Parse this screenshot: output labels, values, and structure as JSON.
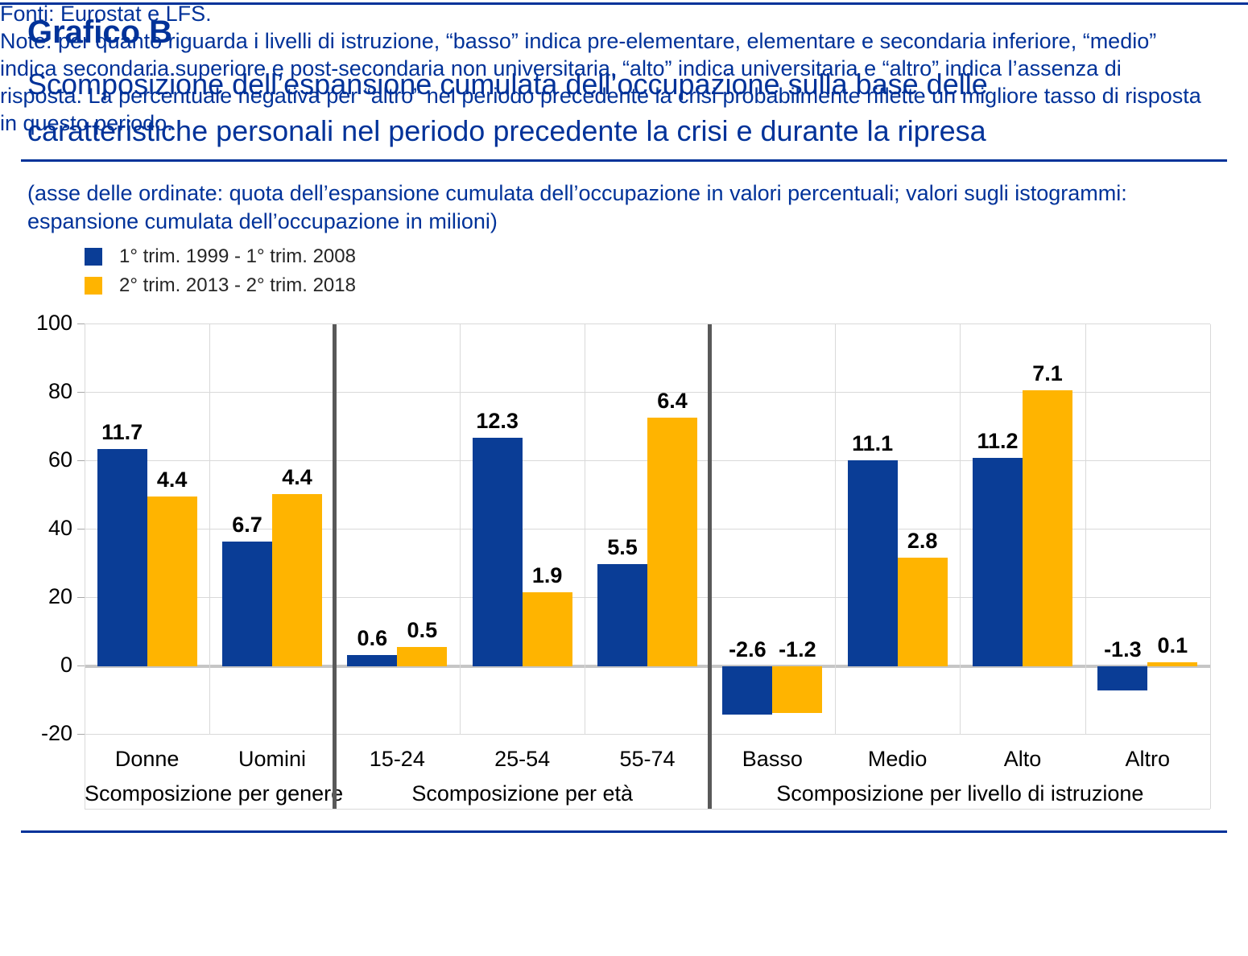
{
  "page": {
    "top_title": "Grafico B",
    "subtitle": "Scomposizione dell’espansione cumulata dell’occupazione sulla base delle caratteristiche personali nel periodo precedente la crisi e durante la ripresa",
    "axis_note": "(asse delle ordinate: quota dell’espansione cumulata dell’occupazione in valori percentuali; valori sugli istogrammi: espansione cumulata dell’occupazione in milioni)",
    "footer_source": "Fonti: Eurostat e LFS.",
    "footer_note": "Note: per quanto riguarda i livelli di istruzione, “basso” indica pre-elementare, elementare e secondaria inferiore, “medio” indica secondaria superiore e post-secondaria non universitaria, “alto” indica universitaria e “altro” indica l’assenza di risposta. La percentuale negativa per “altro” nel periodo precedente la crisi probabilmente riflette un migliore tasso di risposta in questo periodo."
  },
  "colors": {
    "navy": "#003299",
    "bar_blue": "#0a3d96",
    "bar_yellow": "#ffb400",
    "grid": "#d9d9d9",
    "zero_line": "#c6c6c6",
    "separator": "#595959",
    "label_black": "#000000"
  },
  "chart_data": {
    "type": "bar",
    "unit_note": "bar heights = quota dell’espansione cumulata dell’occupazione in %, valori sugli istogrammi = milioni",
    "ylim": [
      -20,
      100
    ],
    "yticks": [
      100,
      80,
      60,
      40,
      20,
      0,
      -20
    ],
    "grid": true,
    "legend_position": "top-left",
    "series": [
      {
        "name": "1° trim. 1999 - 1° trim. 2008",
        "color": "#0a3d96"
      },
      {
        "name": "2° trim. 2013 - 2° trim. 2018",
        "color": "#ffb400"
      }
    ],
    "groups": [
      {
        "label": "Scomposizione per genere",
        "categories": [
          "Donne",
          "Uomini"
        ],
        "values_pct": [
          [
            63.5,
            49.6
          ],
          [
            36.5,
            50.4
          ]
        ],
        "labels_millions": [
          [
            "11.7",
            "4.4"
          ],
          [
            "6.7",
            "4.4"
          ]
        ]
      },
      {
        "label": "Scomposizione per età",
        "categories": [
          "15-24",
          "25-54",
          "55-74"
        ],
        "values_pct": [
          [
            3.3,
            5.7
          ],
          [
            66.8,
            21.6
          ],
          [
            29.9,
            72.7
          ]
        ],
        "labels_millions": [
          [
            "0.6",
            "0.5"
          ],
          [
            "12.3",
            "1.9"
          ],
          [
            "5.5",
            "6.4"
          ]
        ]
      },
      {
        "label": "Scomposizione per livello di istruzione",
        "categories": [
          "Basso",
          "Medio",
          "Alto",
          "Altro"
        ],
        "values_pct": [
          [
            -14.1,
            -13.6
          ],
          [
            60.3,
            31.8
          ],
          [
            60.9,
            80.7
          ],
          [
            -7.1,
            1.1
          ]
        ],
        "labels_millions": [
          [
            "-2.6",
            "-1.2"
          ],
          [
            "11.1",
            "2.8"
          ],
          [
            "11.2",
            "7.1"
          ],
          [
            "-1.3",
            "0.1"
          ]
        ]
      }
    ]
  }
}
